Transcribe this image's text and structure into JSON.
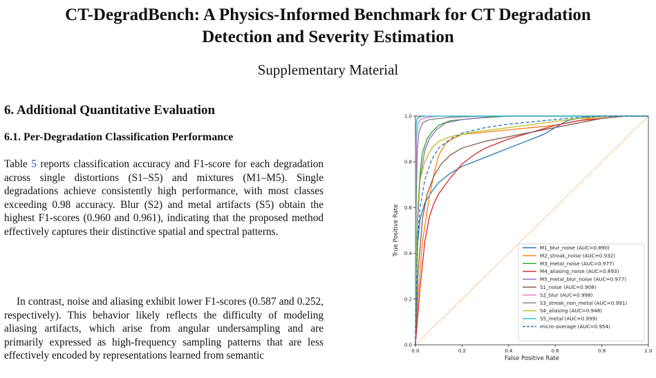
{
  "paper": {
    "title_line1": "CT-DegradBench: A Physics-Informed Benchmark for CT Degradation",
    "title_line2": "Detection and Severity Estimation",
    "subtitle": "Supplementary Material",
    "section_heading": "6. Additional Quantitative Evaluation",
    "subsection_heading": "6.1. Per-Degradation Classification Performance",
    "p1_before_ref": "Table ",
    "p1_ref": "5",
    "p1_after_ref": " reports classification accuracy and F1-score for each degradation across single distortions (S1–S5) and mixtures (M1–M5). Single degradations achieve consistently high performance, with most classes exceeding 0.98 accuracy. Blur (S2) and metal artifacts (S5) obtain the highest F1-scores (0.960 and 0.961), indicating that the proposed method effectively captures their distinctive spatial and spectral patterns.",
    "p2": "In contrast, noise and aliasing exhibit lower F1-scores (0.587 and 0.252, respectively). This behavior likely reflects the difficulty of modeling aliasing artifacts, which arise from angular undersampling and are primarily expressed as high-frequency sampling patterns that are less effectively encoded by representations learned from semantic"
  },
  "chart_data": {
    "type": "line",
    "xlabel": "False Positive Rate",
    "ylabel": "True Positive Rate",
    "xlim": [
      0,
      1
    ],
    "ylim": [
      0,
      1
    ],
    "xticks": [
      "0.0",
      "0.2",
      "0.4",
      "0.6",
      "0.8",
      "1.0"
    ],
    "yticks": [
      "0.0",
      "0.2",
      "0.4",
      "0.6",
      "0.8",
      "1.0"
    ],
    "grid": false,
    "legend_position": "lower-right",
    "diagonal": {
      "color": "#ff7f0e",
      "style": "dotted"
    },
    "series": [
      {
        "name": "M1_blur_noise (AUC=0.890)",
        "color": "#1f77b4",
        "dashed": false,
        "points": [
          [
            0,
            0
          ],
          [
            0.005,
            0.3
          ],
          [
            0.01,
            0.45
          ],
          [
            0.02,
            0.55
          ],
          [
            0.04,
            0.62
          ],
          [
            0.07,
            0.67
          ],
          [
            0.1,
            0.71
          ],
          [
            0.15,
            0.75
          ],
          [
            0.2,
            0.78
          ],
          [
            0.3,
            0.82
          ],
          [
            0.4,
            0.86
          ],
          [
            0.5,
            0.9
          ],
          [
            0.55,
            0.92
          ],
          [
            0.6,
            0.95
          ],
          [
            0.65,
            0.98
          ],
          [
            0.75,
            1.0
          ],
          [
            1,
            1
          ]
        ]
      },
      {
        "name": "M2_streak_noise (AUC=0.932)",
        "color": "#ff7f0e",
        "dashed": false,
        "points": [
          [
            0,
            0
          ],
          [
            0.01,
            0.2
          ],
          [
            0.03,
            0.45
          ],
          [
            0.06,
            0.65
          ],
          [
            0.08,
            0.75
          ],
          [
            0.1,
            0.83
          ],
          [
            0.13,
            0.88
          ],
          [
            0.16,
            0.9
          ],
          [
            0.2,
            0.92
          ],
          [
            0.4,
            0.94
          ],
          [
            0.6,
            0.96
          ],
          [
            0.7,
            0.98
          ],
          [
            0.8,
            1.0
          ],
          [
            1,
            1
          ]
        ]
      },
      {
        "name": "M3_metal_noise (AUC=0.977)",
        "color": "#2ca02c",
        "dashed": false,
        "points": [
          [
            0,
            0
          ],
          [
            0.005,
            0.4
          ],
          [
            0.01,
            0.6
          ],
          [
            0.02,
            0.75
          ],
          [
            0.03,
            0.84
          ],
          [
            0.05,
            0.9
          ],
          [
            0.07,
            0.93
          ],
          [
            0.1,
            0.96
          ],
          [
            0.15,
            0.98
          ],
          [
            0.25,
            0.99
          ],
          [
            0.4,
            1.0
          ],
          [
            1,
            1
          ]
        ]
      },
      {
        "name": "M4_aliasing_noise (AUC=0.893)",
        "color": "#d62728",
        "dashed": false,
        "points": [
          [
            0,
            0
          ],
          [
            0.02,
            0.25
          ],
          [
            0.04,
            0.45
          ],
          [
            0.06,
            0.56
          ],
          [
            0.08,
            0.62
          ],
          [
            0.1,
            0.66
          ],
          [
            0.15,
            0.73
          ],
          [
            0.2,
            0.79
          ],
          [
            0.25,
            0.83
          ],
          [
            0.3,
            0.86
          ],
          [
            0.4,
            0.9
          ],
          [
            0.5,
            0.93
          ],
          [
            0.6,
            0.96
          ],
          [
            0.7,
            0.98
          ],
          [
            0.8,
            0.99
          ],
          [
            0.9,
            1.0
          ],
          [
            1,
            1
          ]
        ]
      },
      {
        "name": "M5_metal_blur_noise (AUC=0.977)",
        "color": "#9467bd",
        "dashed": false,
        "points": [
          [
            0,
            0
          ],
          [
            0.005,
            0.35
          ],
          [
            0.01,
            0.55
          ],
          [
            0.02,
            0.72
          ],
          [
            0.04,
            0.85
          ],
          [
            0.06,
            0.9
          ],
          [
            0.09,
            0.94
          ],
          [
            0.13,
            0.97
          ],
          [
            0.2,
            0.985
          ],
          [
            0.35,
            1.0
          ],
          [
            1,
            1
          ]
        ]
      },
      {
        "name": "S1_noise (AUC=0.908)",
        "color": "#8c564b",
        "dashed": false,
        "points": [
          [
            0,
            0
          ],
          [
            0.01,
            0.3
          ],
          [
            0.03,
            0.55
          ],
          [
            0.05,
            0.66
          ],
          [
            0.08,
            0.74
          ],
          [
            0.11,
            0.79
          ],
          [
            0.15,
            0.83
          ],
          [
            0.2,
            0.86
          ],
          [
            0.3,
            0.89
          ],
          [
            0.4,
            0.91
          ],
          [
            0.5,
            0.93
          ],
          [
            0.65,
            0.96
          ],
          [
            0.8,
            0.99
          ],
          [
            0.9,
            1.0
          ],
          [
            1,
            1
          ]
        ]
      },
      {
        "name": "S2_blur (AUC=0.998)",
        "color": "#e377c2",
        "dashed": false,
        "points": [
          [
            0,
            0
          ],
          [
            0.002,
            0.7
          ],
          [
            0.005,
            0.9
          ],
          [
            0.01,
            0.96
          ],
          [
            0.02,
            0.985
          ],
          [
            0.05,
            0.995
          ],
          [
            0.1,
            1.0
          ],
          [
            1,
            1
          ]
        ]
      },
      {
        "name": "S3_streak_non_metal (AUC=0.991)",
        "color": "#7f7f7f",
        "dashed": false,
        "points": [
          [
            0,
            0
          ],
          [
            0.003,
            0.6
          ],
          [
            0.008,
            0.85
          ],
          [
            0.015,
            0.93
          ],
          [
            0.03,
            0.97
          ],
          [
            0.06,
            0.985
          ],
          [
            0.15,
            0.995
          ],
          [
            0.3,
            1.0
          ],
          [
            1,
            1
          ]
        ]
      },
      {
        "name": "S4_aliasing (AUC=0.948)",
        "color": "#bcbd22",
        "dashed": false,
        "points": [
          [
            0,
            0
          ],
          [
            0.005,
            0.4
          ],
          [
            0.01,
            0.6
          ],
          [
            0.02,
            0.72
          ],
          [
            0.04,
            0.8
          ],
          [
            0.07,
            0.86
          ],
          [
            0.1,
            0.89
          ],
          [
            0.15,
            0.91
          ],
          [
            0.25,
            0.93
          ],
          [
            0.4,
            0.95
          ],
          [
            0.55,
            0.97
          ],
          [
            0.7,
            0.99
          ],
          [
            0.85,
            1.0
          ],
          [
            1,
            1
          ]
        ]
      },
      {
        "name": "S5_metal (AUC=0.999)",
        "color": "#17becf",
        "dashed": false,
        "points": [
          [
            0,
            0
          ],
          [
            0.001,
            0.85
          ],
          [
            0.003,
            0.96
          ],
          [
            0.008,
            0.99
          ],
          [
            0.02,
            0.997
          ],
          [
            0.05,
            1.0
          ],
          [
            1,
            1
          ]
        ]
      },
      {
        "name": "micro-average (AUC=0.954)",
        "color": "#1f77b4",
        "dashed": true,
        "points": [
          [
            0,
            0
          ],
          [
            0.005,
            0.3
          ],
          [
            0.01,
            0.48
          ],
          [
            0.02,
            0.6
          ],
          [
            0.04,
            0.72
          ],
          [
            0.07,
            0.81
          ],
          [
            0.1,
            0.86
          ],
          [
            0.15,
            0.9
          ],
          [
            0.2,
            0.925
          ],
          [
            0.3,
            0.95
          ],
          [
            0.4,
            0.965
          ],
          [
            0.5,
            0.975
          ],
          [
            0.65,
            0.99
          ],
          [
            0.8,
            1.0
          ],
          [
            1,
            1
          ]
        ]
      }
    ]
  }
}
